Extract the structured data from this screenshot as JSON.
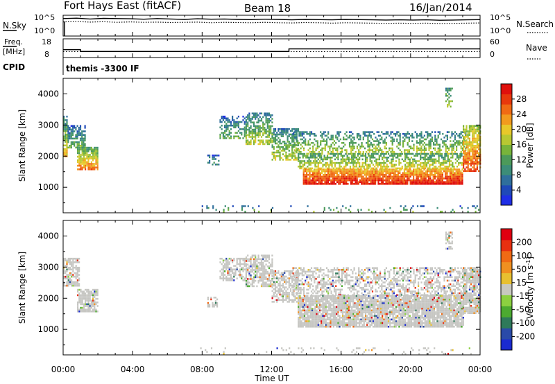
{
  "header": {
    "station": "Fort Hays East (fitACF)",
    "beam": "Beam 18",
    "date": "16/Jan/2014"
  },
  "noise_panel": {
    "left_label": "N.Sky",
    "right_label": "N.Search",
    "left_ticks": [
      "10^5",
      "10^0"
    ],
    "right_ticks": [
      "10^5",
      "10^0"
    ],
    "sky_series": [
      4.2,
      4.3,
      4.1,
      4.25,
      4.2,
      4.15,
      4.05,
      4.2,
      4.1,
      4.0,
      4.15,
      4.05,
      4.1,
      4.0,
      3.95,
      4.05,
      4.0,
      3.9,
      4.0,
      3.95,
      3.9,
      4.0,
      3.95,
      3.9,
      3.85,
      3.9,
      3.85,
      3.9,
      3.8,
      3.85,
      3.9,
      3.95
    ],
    "search_series": [
      3.4,
      3.5,
      3.35,
      3.45,
      3.3,
      3.4,
      3.3,
      3.35,
      3.25,
      3.3,
      3.35,
      3.2,
      3.3,
      3.25,
      3.2,
      3.3,
      3.2,
      3.15,
      3.25,
      3.2,
      3.1,
      3.2,
      3.15,
      3.1,
      3.05,
      3.1,
      3.05,
      3.1,
      3.0,
      3.05,
      3.1,
      3.15
    ]
  },
  "freq_panel": {
    "left_label_1": "Freq.",
    "left_label_2": "[MHz]",
    "right_label": "Nave",
    "left_ticks": [
      "18",
      "8"
    ],
    "right_ticks": [
      "60",
      "0"
    ],
    "freq_steps": [
      {
        "t0": 0.0,
        "t1": 1.0,
        "mhz": 11.9
      },
      {
        "t0": 1.0,
        "t1": 13.0,
        "mhz": 10.5
      },
      {
        "t0": 13.0,
        "t1": 24.0,
        "mhz": 12.5
      }
    ],
    "nave_level": 19
  },
  "cpid": {
    "label": "CPID",
    "text": "themis -3300 IF"
  },
  "chart_data": [
    {
      "type": "heatmap",
      "title": "",
      "xlabel": "Time UT",
      "ylabel": "Slant Range [km]",
      "xlim": [
        0,
        24
      ],
      "ylim": [
        180,
        4500
      ],
      "y_ticks": [
        1000,
        2000,
        3000,
        4000
      ],
      "colorbar": {
        "label": "Power [dB]",
        "range": [
          0,
          32
        ],
        "tick_labels": [
          "4",
          "8",
          "12",
          "16",
          "20",
          "24",
          "28"
        ],
        "colors": [
          "#1f2ee6",
          "#1f49b8",
          "#2f6f9c",
          "#3c8d78",
          "#4c9a5a",
          "#78b43a",
          "#b8c832",
          "#e8c82a",
          "#f29a1e",
          "#f06a14",
          "#e8380c",
          "#e0100c"
        ]
      },
      "regions": [
        {
          "t0": 0.0,
          "t1": 0.25,
          "r0": 2000,
          "r1": 3300,
          "pmin": 6,
          "pmax": 22,
          "density": 0.8
        },
        {
          "t0": 0.25,
          "t1": 1.3,
          "r0": 2300,
          "r1": 3000,
          "pmin": 4,
          "pmax": 14,
          "density": 0.7
        },
        {
          "t0": 0.8,
          "t1": 2.0,
          "r0": 1550,
          "r1": 2300,
          "pmin": 10,
          "pmax": 26,
          "density": 0.85
        },
        {
          "t0": 9.0,
          "t1": 10.5,
          "r0": 2600,
          "r1": 3300,
          "pmin": 4,
          "pmax": 14,
          "density": 0.5
        },
        {
          "t0": 10.5,
          "t1": 12.0,
          "r0": 2400,
          "r1": 3400,
          "pmin": 6,
          "pmax": 18,
          "density": 0.65
        },
        {
          "t0": 12.0,
          "t1": 13.5,
          "r0": 1900,
          "r1": 2900,
          "pmin": 6,
          "pmax": 18,
          "density": 0.6
        },
        {
          "t0": 13.2,
          "t1": 23.2,
          "r0": 2100,
          "r1": 2800,
          "pmin": 6,
          "pmax": 18,
          "density": 0.45
        },
        {
          "t0": 13.5,
          "t1": 23.0,
          "r0": 1600,
          "r1": 2100,
          "pmin": 10,
          "pmax": 20,
          "density": 0.6
        },
        {
          "t0": 13.8,
          "t1": 23.0,
          "r0": 1100,
          "r1": 1600,
          "pmin": 20,
          "pmax": 31,
          "density": 0.9
        },
        {
          "t0": 23.0,
          "t1": 24.0,
          "r0": 1500,
          "r1": 3000,
          "pmin": 14,
          "pmax": 28,
          "density": 0.8
        },
        {
          "t0": 8.3,
          "t1": 9.0,
          "r0": 1750,
          "r1": 2050,
          "pmin": 4,
          "pmax": 10,
          "density": 0.5
        },
        {
          "t0": 22.0,
          "t1": 22.4,
          "r0": 3600,
          "r1": 4200,
          "pmin": 8,
          "pmax": 18,
          "density": 0.4
        },
        {
          "t0": 7.8,
          "t1": 24.0,
          "r0": 200,
          "r1": 420,
          "pmin": 4,
          "pmax": 18,
          "density": 0.08
        }
      ]
    },
    {
      "type": "heatmap",
      "title": "",
      "xlabel": "Time UT",
      "ylabel": "Slant Range [km]",
      "xlim": [
        0,
        24
      ],
      "ylim": [
        180,
        4500
      ],
      "y_ticks": [
        1000,
        2000,
        3000,
        4000
      ],
      "x_tick_labels": [
        "00:00",
        "04:00",
        "08:00",
        "12:00",
        "16:00",
        "20:00",
        "00:00"
      ],
      "colorbar": {
        "label": "Velocity [m s^-1]",
        "range": [
          -250,
          250
        ],
        "tick_labels": [
          "200",
          "100",
          "50",
          "15",
          "-15",
          "-50",
          "-100",
          "-200"
        ],
        "colors": [
          "#1a2ad0",
          "#2a4aa8",
          "#2e7a5a",
          "#4caa30",
          "#8cd040",
          "#c8c8c0",
          "#e8c030",
          "#f09020",
          "#f06a14",
          "#e83010",
          "#e00010"
        ]
      },
      "ground_scatter_color": "#c6c6c2",
      "regions": [
        {
          "t0": 0.0,
          "t1": 0.9,
          "r0": 2400,
          "r1": 3300,
          "density": 0.75
        },
        {
          "t0": 0.8,
          "t1": 2.0,
          "r0": 1550,
          "r1": 2300,
          "density": 0.8
        },
        {
          "t0": 9.0,
          "t1": 10.5,
          "r0": 2600,
          "r1": 3300,
          "density": 0.55
        },
        {
          "t0": 10.5,
          "t1": 12.0,
          "r0": 2400,
          "r1": 3400,
          "density": 0.7
        },
        {
          "t0": 12.0,
          "t1": 13.5,
          "r0": 1900,
          "r1": 2900,
          "density": 0.65
        },
        {
          "t0": 13.2,
          "t1": 23.2,
          "r0": 2100,
          "r1": 3000,
          "density": 0.5
        },
        {
          "t0": 13.5,
          "t1": 23.0,
          "r0": 1100,
          "r1": 2100,
          "density": 0.9
        },
        {
          "t0": 23.0,
          "t1": 24.0,
          "r0": 1500,
          "r1": 3000,
          "density": 0.85
        },
        {
          "t0": 8.3,
          "t1": 9.0,
          "r0": 1750,
          "r1": 2050,
          "density": 0.5
        },
        {
          "t0": 22.0,
          "t1": 22.4,
          "r0": 3600,
          "r1": 4200,
          "density": 0.4
        },
        {
          "t0": 7.8,
          "t1": 24.0,
          "r0": 200,
          "r1": 420,
          "density": 0.08
        }
      ]
    }
  ]
}
